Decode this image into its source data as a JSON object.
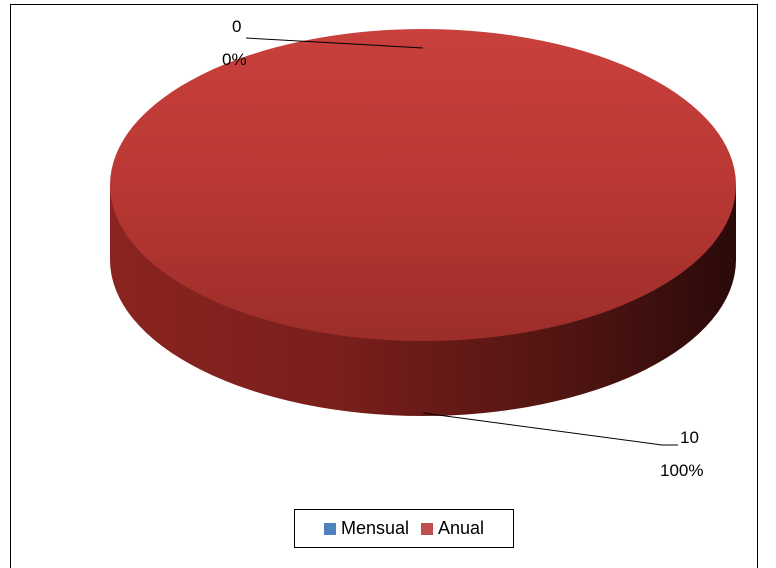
{
  "chart_data": {
    "type": "pie",
    "style": "3d",
    "categories": [
      "Mensual",
      "Anual"
    ],
    "values": [
      0,
      10
    ],
    "percentages": [
      "0%",
      "100%"
    ],
    "colors": [
      "#4f81bd",
      "#c0504d"
    ],
    "title": "",
    "legend": {
      "placement": "bottom",
      "entries": [
        "Mensual",
        "Anual"
      ]
    },
    "data_labels": [
      {
        "value": "0",
        "percent": "0%"
      },
      {
        "value": "10",
        "percent": "100%"
      }
    ]
  }
}
